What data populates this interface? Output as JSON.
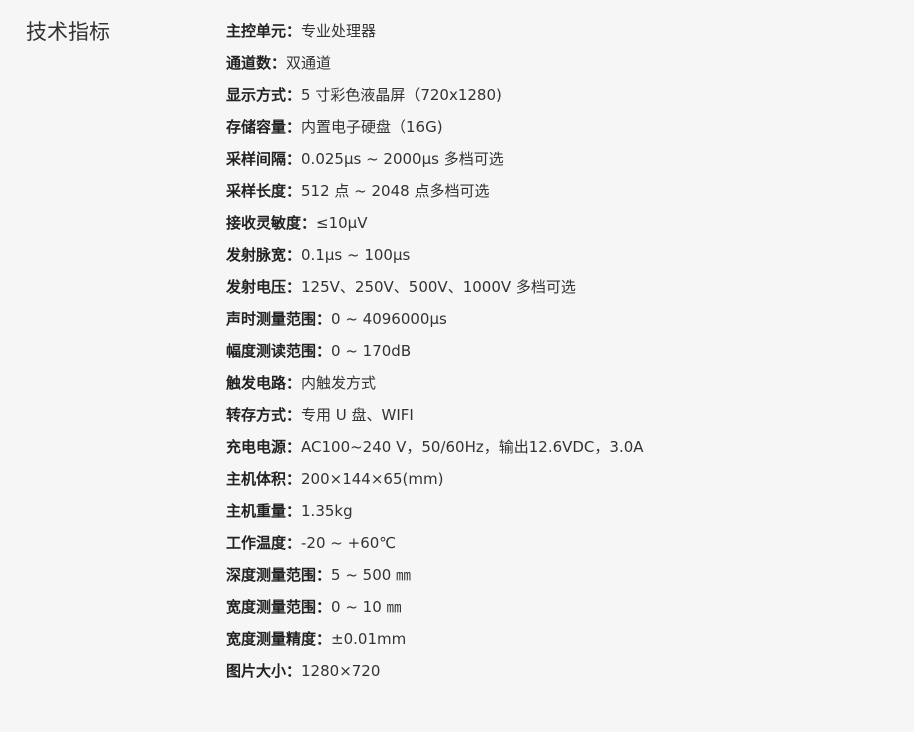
{
  "section_title": "技术指标",
  "specs": [
    {
      "label": "主控单元：",
      "value": "专业处理器"
    },
    {
      "label": "通道数：",
      "value": "双通道"
    },
    {
      "label": "显示方式：",
      "value": "5 寸彩色液晶屏（720x1280)"
    },
    {
      "label": "存储容量：",
      "value": "内置电子硬盘（16G)"
    },
    {
      "label": "采样间隔：",
      "value": "0.025μs ~ 2000μs 多档可选"
    },
    {
      "label": "采样长度：",
      "value": "512 点 ~ 2048 点多档可选"
    },
    {
      "label": "接收灵敏度：",
      "value": "≤10μV"
    },
    {
      "label": "发射脉宽：",
      "value": "0.1μs ~ 100μs"
    },
    {
      "label": "发射电压：",
      "value": "125V、250V、500V、1000V 多档可选"
    },
    {
      "label": "声时测量范围：",
      "value": "0 ~ 4096000μs"
    },
    {
      "label": "幅度测读范围：",
      "value": "0 ~ 170dB"
    },
    {
      "label": "触发电路：",
      "value": "内触发方式"
    },
    {
      "label": "转存方式：",
      "value": "专用 U 盘、WIFI"
    },
    {
      "label": "充电电源：",
      "value": "AC100~240 V，50/60Hz，输出12.6VDC，3.0A"
    },
    {
      "label": "主机体积：",
      "value": "200×144×65(mm)"
    },
    {
      "label": "主机重量：",
      "value": "1.35kg"
    },
    {
      "label": "工作温度：",
      "value": "-20 ~ +60℃"
    },
    {
      "label": "深度测量范围：",
      "value": "5 ~ 500 ㎜"
    },
    {
      "label": "宽度测量范围：",
      "value": "0 ~ 10 ㎜"
    },
    {
      "label": "宽度测量精度：",
      "value": "±0.01mm"
    },
    {
      "label": "图片大小：",
      "value": "1280×720"
    }
  ]
}
